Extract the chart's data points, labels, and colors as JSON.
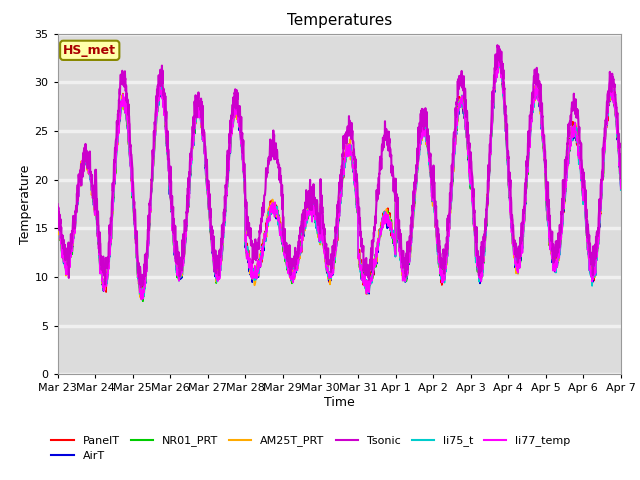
{
  "title": "Temperatures",
  "xlabel": "Time",
  "ylabel": "Temperature",
  "ylim": [
    0,
    35
  ],
  "yticks": [
    0,
    5,
    10,
    15,
    20,
    25,
    30,
    35
  ],
  "fig_bg_color": "#ffffff",
  "plot_bg_color": "#dcdcdc",
  "grid_color": "#f0f0f0",
  "annotation_text": "HS_met",
  "annotation_color": "#aa0000",
  "annotation_bg": "#ffffaa",
  "annotation_border": "#888800",
  "series": [
    {
      "name": "PanelT",
      "color": "#ff0000",
      "lw": 1.2
    },
    {
      "name": "AirT",
      "color": "#0000dd",
      "lw": 1.2
    },
    {
      "name": "NR01_PRT",
      "color": "#00cc00",
      "lw": 1.2
    },
    {
      "name": "AM25T_PRT",
      "color": "#ffaa00",
      "lw": 1.2
    },
    {
      "name": "Tsonic",
      "color": "#cc00cc",
      "lw": 1.5
    },
    {
      "name": "li75_t",
      "color": "#00cccc",
      "lw": 1.2
    },
    {
      "name": "li77_temp",
      "color": "#ff00ff",
      "lw": 1.2
    }
  ],
  "x_tick_labels": [
    "Mar 23",
    "Mar 24",
    "Mar 25",
    "Mar 26",
    "Mar 27",
    "Mar 28",
    "Mar 29",
    "Mar 30",
    "Mar 31",
    "Apr 1",
    "Apr 2",
    "Apr 3",
    "Apr 4",
    "Apr 5",
    "Apr 6",
    "Apr 7"
  ],
  "title_fontsize": 11,
  "axis_label_fontsize": 9,
  "tick_fontsize": 8,
  "legend_fontsize": 8
}
